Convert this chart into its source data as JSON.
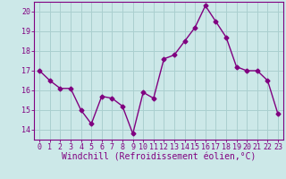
{
  "x": [
    0,
    1,
    2,
    3,
    4,
    5,
    6,
    7,
    8,
    9,
    10,
    11,
    12,
    13,
    14,
    15,
    16,
    17,
    18,
    19,
    20,
    21,
    22,
    23
  ],
  "y": [
    17.0,
    16.5,
    16.1,
    16.1,
    15.0,
    14.3,
    15.7,
    15.6,
    15.2,
    13.8,
    15.9,
    15.6,
    17.6,
    17.8,
    18.5,
    19.2,
    20.3,
    19.5,
    18.7,
    17.2,
    17.0,
    17.0,
    16.5,
    14.8
  ],
  "line_color": "#800080",
  "marker": "D",
  "marker_size": 2.5,
  "line_width": 1.0,
  "bg_color": "#cce8e8",
  "grid_color": "#aacfcf",
  "xlabel": "Windchill (Refroidissement éolien,°C)",
  "xlim": [
    -0.5,
    23.5
  ],
  "ylim": [
    13.5,
    20.5
  ],
  "yticks": [
    14,
    15,
    16,
    17,
    18,
    19,
    20
  ],
  "xticks": [
    0,
    1,
    2,
    3,
    4,
    5,
    6,
    7,
    8,
    9,
    10,
    11,
    12,
    13,
    14,
    15,
    16,
    17,
    18,
    19,
    20,
    21,
    22,
    23
  ],
  "tick_label_color": "#800080",
  "tick_label_fontsize": 6,
  "xlabel_fontsize": 7,
  "spine_color": "#800080"
}
